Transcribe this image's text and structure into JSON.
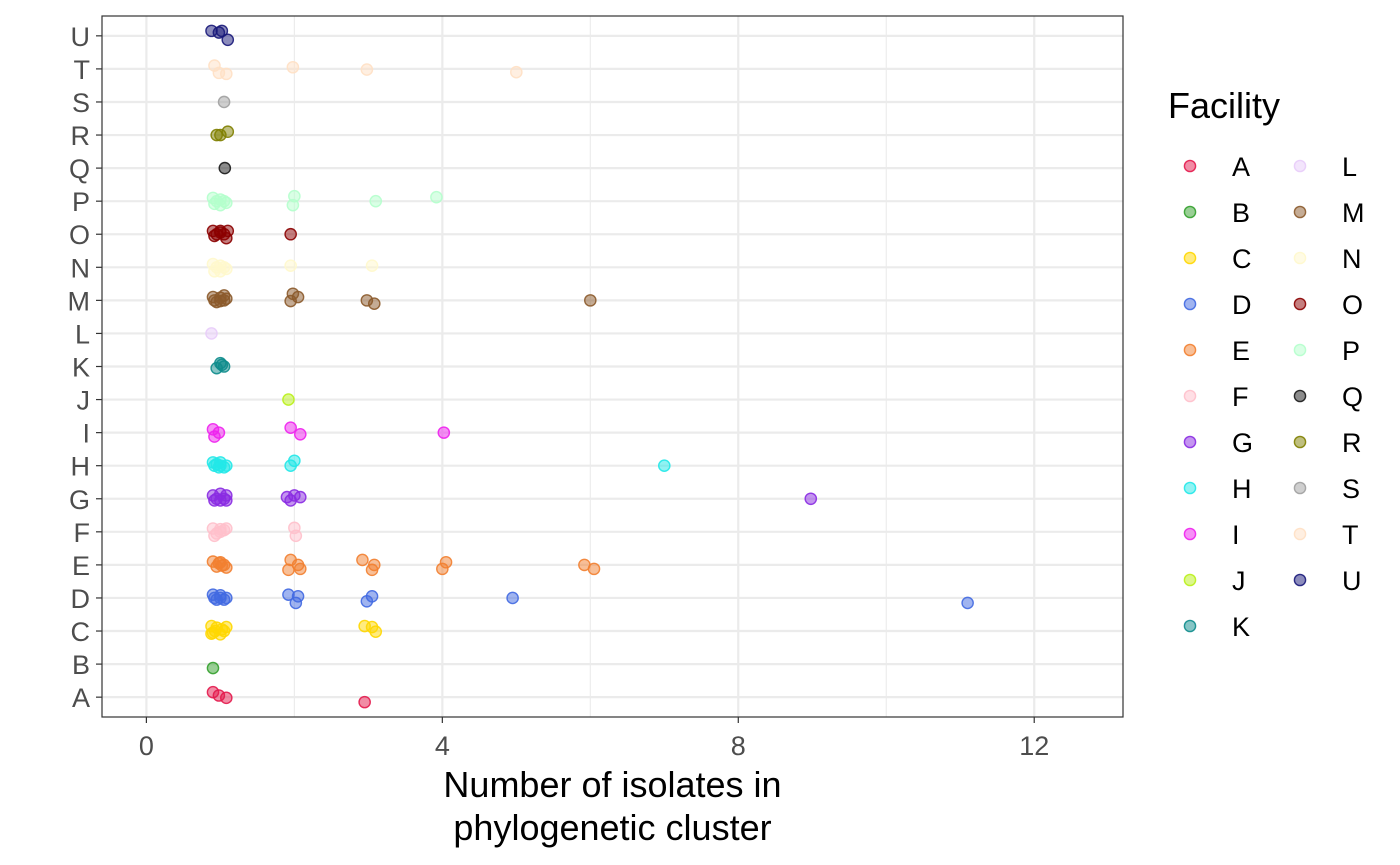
{
  "chart_data": {
    "type": "scatter",
    "title": "",
    "xlabel": "Number of isolates in\nphylogenetic cluster",
    "ylabel": "",
    "xlim": [
      -0.6,
      13.2
    ],
    "x_ticks": [
      0,
      4,
      8,
      12
    ],
    "x_tick_labels": [
      "0",
      "4",
      "8",
      "12"
    ],
    "categories": [
      "A",
      "B",
      "C",
      "D",
      "E",
      "F",
      "G",
      "H",
      "I",
      "J",
      "K",
      "L",
      "M",
      "N",
      "O",
      "P",
      "Q",
      "R",
      "S",
      "T",
      "U"
    ],
    "grid": true,
    "legend": {
      "title": "Facility",
      "position": "right",
      "columns": 2
    },
    "series": [
      {
        "name": "A",
        "color": "#E31A4C",
        "points": [
          [
            0.9,
            0.15
          ],
          [
            0.98,
            0.05
          ],
          [
            1.08,
            -0.02
          ],
          [
            2.95,
            -0.15
          ]
        ]
      },
      {
        "name": "B",
        "color": "#33A02C",
        "points": [
          [
            0.9,
            -0.12
          ]
        ]
      },
      {
        "name": "C",
        "color": "#FFD700",
        "points": [
          [
            0.88,
            0.15
          ],
          [
            0.95,
            0.1
          ],
          [
            1.02,
            0.05
          ],
          [
            1.08,
            0.12
          ],
          [
            0.9,
            -0.05
          ],
          [
            1.0,
            -0.1
          ],
          [
            1.05,
            0.0
          ],
          [
            0.93,
            0.0
          ],
          [
            0.88,
            -0.08
          ],
          [
            2.95,
            0.15
          ],
          [
            3.05,
            0.12
          ],
          [
            3.1,
            -0.02
          ]
        ]
      },
      {
        "name": "D",
        "color": "#4169E1",
        "points": [
          [
            0.9,
            0.1
          ],
          [
            0.95,
            -0.05
          ],
          [
            1.0,
            0.08
          ],
          [
            1.05,
            -0.05
          ],
          [
            1.0,
            0.0
          ],
          [
            0.92,
            0.0
          ],
          [
            1.08,
            0.0
          ],
          [
            1.92,
            0.1
          ],
          [
            2.05,
            0.05
          ],
          [
            2.02,
            -0.15
          ],
          [
            2.98,
            -0.1
          ],
          [
            3.05,
            0.05
          ],
          [
            4.95,
            0.0
          ],
          [
            11.1,
            -0.15
          ]
        ]
      },
      {
        "name": "E",
        "color": "#F28030",
        "points": [
          [
            0.9,
            0.1
          ],
          [
            0.98,
            0.05
          ],
          [
            1.05,
            0.0
          ],
          [
            1.08,
            -0.08
          ],
          [
            0.95,
            -0.05
          ],
          [
            1.0,
            0.08
          ],
          [
            1.02,
            -0.02
          ],
          [
            1.95,
            0.15
          ],
          [
            1.92,
            -0.15
          ],
          [
            2.05,
            0.0
          ],
          [
            2.08,
            -0.12
          ],
          [
            2.92,
            0.15
          ],
          [
            3.08,
            0.0
          ],
          [
            3.05,
            -0.15
          ],
          [
            4.05,
            0.08
          ],
          [
            4.0,
            -0.12
          ],
          [
            5.92,
            0.0
          ],
          [
            6.05,
            -0.12
          ]
        ]
      },
      {
        "name": "F",
        "color": "#FFC0CB",
        "points": [
          [
            0.9,
            0.1
          ],
          [
            0.95,
            -0.05
          ],
          [
            1.0,
            0.08
          ],
          [
            1.05,
            0.05
          ],
          [
            1.08,
            0.1
          ],
          [
            0.92,
            -0.12
          ],
          [
            1.0,
            0.0
          ],
          [
            2.0,
            0.12
          ],
          [
            2.02,
            -0.12
          ]
        ]
      },
      {
        "name": "G",
        "color": "#8A2BE2",
        "points": [
          [
            0.9,
            0.1
          ],
          [
            0.95,
            0.0
          ],
          [
            1.0,
            0.15
          ],
          [
            1.05,
            0.0
          ],
          [
            1.08,
            0.1
          ],
          [
            0.92,
            -0.05
          ],
          [
            1.0,
            -0.05
          ],
          [
            1.08,
            -0.05
          ],
          [
            1.9,
            0.05
          ],
          [
            1.95,
            -0.05
          ],
          [
            2.0,
            0.1
          ],
          [
            2.08,
            0.05
          ],
          [
            8.98,
            0.0
          ]
        ]
      },
      {
        "name": "H",
        "color": "#22E8E8",
        "points": [
          [
            0.9,
            0.1
          ],
          [
            0.95,
            0.05
          ],
          [
            1.0,
            0.1
          ],
          [
            1.05,
            -0.05
          ],
          [
            1.08,
            0.0
          ],
          [
            0.92,
            0.0
          ],
          [
            0.98,
            -0.05
          ],
          [
            1.0,
            0.0
          ],
          [
            1.95,
            0.0
          ],
          [
            2.0,
            0.15
          ],
          [
            7.0,
            0.0
          ]
        ]
      },
      {
        "name": "I",
        "color": "#EE22EE",
        "points": [
          [
            0.9,
            0.1
          ],
          [
            0.98,
            0.0
          ],
          [
            0.92,
            -0.12
          ],
          [
            1.95,
            0.15
          ],
          [
            2.08,
            -0.05
          ],
          [
            4.02,
            0.0
          ]
        ]
      },
      {
        "name": "J",
        "color": "#B9F01A",
        "points": [
          [
            1.92,
            0.0
          ]
        ]
      },
      {
        "name": "K",
        "color": "#0E8C8C",
        "points": [
          [
            0.95,
            -0.05
          ],
          [
            1.0,
            0.1
          ],
          [
            1.05,
            0.0
          ],
          [
            1.02,
            0.05
          ]
        ]
      },
      {
        "name": "L",
        "color": "#E8CCFA",
        "points": [
          [
            0.88,
            0.0
          ]
        ]
      },
      {
        "name": "M",
        "color": "#8B5A2B",
        "points": [
          [
            0.9,
            0.1
          ],
          [
            0.95,
            -0.05
          ],
          [
            1.0,
            0.08
          ],
          [
            1.05,
            0.0
          ],
          [
            1.08,
            0.05
          ],
          [
            0.92,
            0.0
          ],
          [
            1.0,
            -0.02
          ],
          [
            1.05,
            0.15
          ],
          [
            1.95,
            -0.02
          ],
          [
            1.98,
            0.2
          ],
          [
            2.05,
            0.1
          ],
          [
            2.98,
            0.0
          ],
          [
            3.08,
            -0.1
          ],
          [
            6.0,
            0.0
          ]
        ]
      },
      {
        "name": "N",
        "color": "#FFF8CC",
        "points": [
          [
            0.9,
            0.1
          ],
          [
            0.95,
            0.0
          ],
          [
            1.0,
            0.05
          ],
          [
            1.05,
            0.0
          ],
          [
            1.08,
            -0.05
          ],
          [
            0.92,
            -0.12
          ],
          [
            1.0,
            -0.12
          ],
          [
            1.95,
            0.05
          ],
          [
            3.05,
            0.05
          ]
        ]
      },
      {
        "name": "O",
        "color": "#8B0000",
        "points": [
          [
            0.9,
            0.1
          ],
          [
            0.95,
            0.0
          ],
          [
            1.0,
            0.05
          ],
          [
            1.05,
            0.0
          ],
          [
            1.08,
            -0.12
          ],
          [
            0.92,
            -0.05
          ],
          [
            1.0,
            0.1
          ],
          [
            1.1,
            0.1
          ],
          [
            1.95,
            0.0
          ]
        ]
      },
      {
        "name": "P",
        "color": "#B4FFCC",
        "points": [
          [
            0.9,
            0.1
          ],
          [
            0.95,
            0.0
          ],
          [
            1.0,
            0.05
          ],
          [
            1.05,
            0.0
          ],
          [
            1.08,
            -0.05
          ],
          [
            0.92,
            -0.08
          ],
          [
            1.0,
            -0.12
          ],
          [
            2.0,
            0.15
          ],
          [
            1.98,
            -0.12
          ],
          [
            3.1,
            0.0
          ],
          [
            3.92,
            0.12
          ]
        ]
      },
      {
        "name": "Q",
        "color": "#1A1A1A",
        "points": [
          [
            1.06,
            0.0
          ]
        ]
      },
      {
        "name": "R",
        "color": "#808000",
        "points": [
          [
            0.95,
            0.0
          ],
          [
            1.0,
            0.0
          ],
          [
            1.1,
            0.1
          ]
        ]
      },
      {
        "name": "S",
        "color": "#A0A0A0",
        "points": [
          [
            1.05,
            0.0
          ]
        ]
      },
      {
        "name": "T",
        "color": "#FFE0C4",
        "points": [
          [
            0.92,
            0.1
          ],
          [
            0.98,
            -0.12
          ],
          [
            1.08,
            -0.15
          ],
          [
            1.98,
            0.05
          ],
          [
            2.98,
            -0.02
          ],
          [
            5.0,
            -0.1
          ]
        ]
      },
      {
        "name": "U",
        "color": "#1A1A7A",
        "points": [
          [
            0.88,
            0.15
          ],
          [
            0.98,
            0.1
          ],
          [
            1.02,
            0.15
          ],
          [
            1.1,
            -0.12
          ]
        ]
      }
    ]
  }
}
